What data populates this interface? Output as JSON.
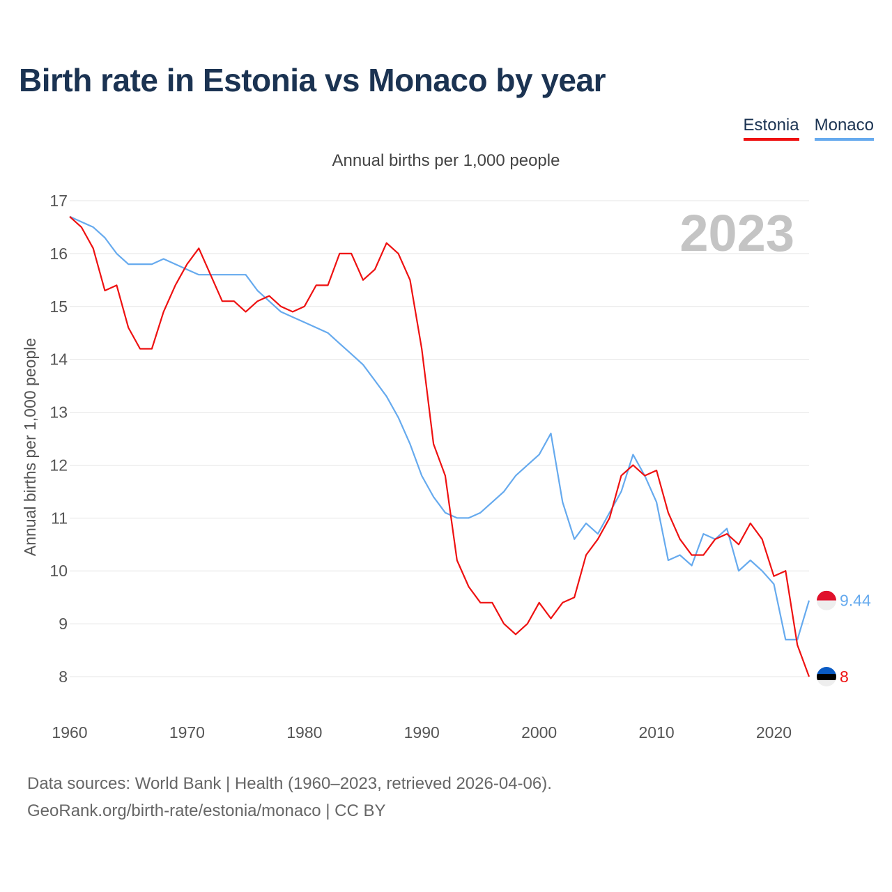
{
  "title": "Birth rate in Estonia vs Monaco by year",
  "subtitle": "Annual births per 1,000 people",
  "legend": {
    "estonia": "Estonia",
    "monaco": "Monaco"
  },
  "colors": {
    "estonia": "#ee1111",
    "monaco": "#66aaee",
    "title": "#1b3352",
    "year_watermark": "#c4c4c4"
  },
  "source": {
    "line1": "Data sources: World Bank | Health (1960–2023, retrieved 2026-04-06).",
    "line2": "GeoRank.org/birth-rate/estonia/monaco | CC BY"
  },
  "chart_data": {
    "type": "line",
    "title": "Birth rate in Estonia vs Monaco by year",
    "ylabel": "Annual births per 1,000 people",
    "xlabel": "",
    "year_label": "2023",
    "xlim": [
      1960,
      2023
    ],
    "ylim": [
      7.5,
      17
    ],
    "x_ticks": [
      1960,
      1970,
      1980,
      1990,
      2000,
      2010,
      2020
    ],
    "y_ticks": [
      8,
      9,
      10,
      11,
      12,
      13,
      14,
      15,
      16,
      17
    ],
    "grid": true,
    "legend_position": "top-right",
    "x": [
      1960,
      1961,
      1962,
      1963,
      1964,
      1965,
      1966,
      1967,
      1968,
      1969,
      1970,
      1971,
      1972,
      1973,
      1974,
      1975,
      1976,
      1977,
      1978,
      1979,
      1980,
      1981,
      1982,
      1983,
      1984,
      1985,
      1986,
      1987,
      1988,
      1989,
      1990,
      1991,
      1992,
      1993,
      1994,
      1995,
      1996,
      1997,
      1998,
      1999,
      2000,
      2001,
      2002,
      2003,
      2004,
      2005,
      2006,
      2007,
      2008,
      2009,
      2010,
      2011,
      2012,
      2013,
      2014,
      2015,
      2016,
      2017,
      2018,
      2019,
      2020,
      2021,
      2022,
      2023
    ],
    "series": [
      {
        "name": "Estonia",
        "color": "#ee1111",
        "end_label": "8",
        "flag": "estonia",
        "values": [
          16.7,
          16.5,
          16.1,
          15.3,
          15.4,
          14.6,
          14.2,
          14.2,
          14.9,
          15.4,
          15.8,
          16.1,
          15.6,
          15.1,
          15.1,
          14.9,
          15.1,
          15.2,
          15.0,
          14.9,
          15.0,
          15.4,
          15.4,
          16.0,
          16.0,
          15.5,
          15.7,
          16.2,
          16.0,
          15.5,
          14.2,
          12.4,
          11.8,
          10.2,
          9.7,
          9.4,
          9.4,
          9.0,
          8.8,
          9.0,
          9.4,
          9.1,
          9.4,
          9.5,
          10.3,
          10.6,
          11.0,
          11.8,
          12.0,
          11.8,
          11.9,
          11.1,
          10.6,
          10.3,
          10.3,
          10.6,
          10.7,
          10.5,
          10.9,
          10.6,
          9.9,
          10.0,
          8.6,
          8.0
        ]
      },
      {
        "name": "Monaco",
        "color": "#66aaee",
        "end_label": "9.44",
        "flag": "monaco",
        "values": [
          16.7,
          16.6,
          16.5,
          16.3,
          16.0,
          15.8,
          15.8,
          15.8,
          15.9,
          15.8,
          15.7,
          15.6,
          15.6,
          15.6,
          15.6,
          15.6,
          15.3,
          15.1,
          14.9,
          14.8,
          14.7,
          14.6,
          14.5,
          14.3,
          14.1,
          13.9,
          13.6,
          13.3,
          12.9,
          12.4,
          11.8,
          11.4,
          11.1,
          11.0,
          11.0,
          11.1,
          11.3,
          11.5,
          11.8,
          12.0,
          12.2,
          12.6,
          11.3,
          10.6,
          10.9,
          10.7,
          11.1,
          11.5,
          12.2,
          11.8,
          11.3,
          10.2,
          10.3,
          10.1,
          10.7,
          10.6,
          10.8,
          10.0,
          10.2,
          10.0,
          9.75,
          8.7,
          8.7,
          9.44
        ]
      }
    ]
  }
}
